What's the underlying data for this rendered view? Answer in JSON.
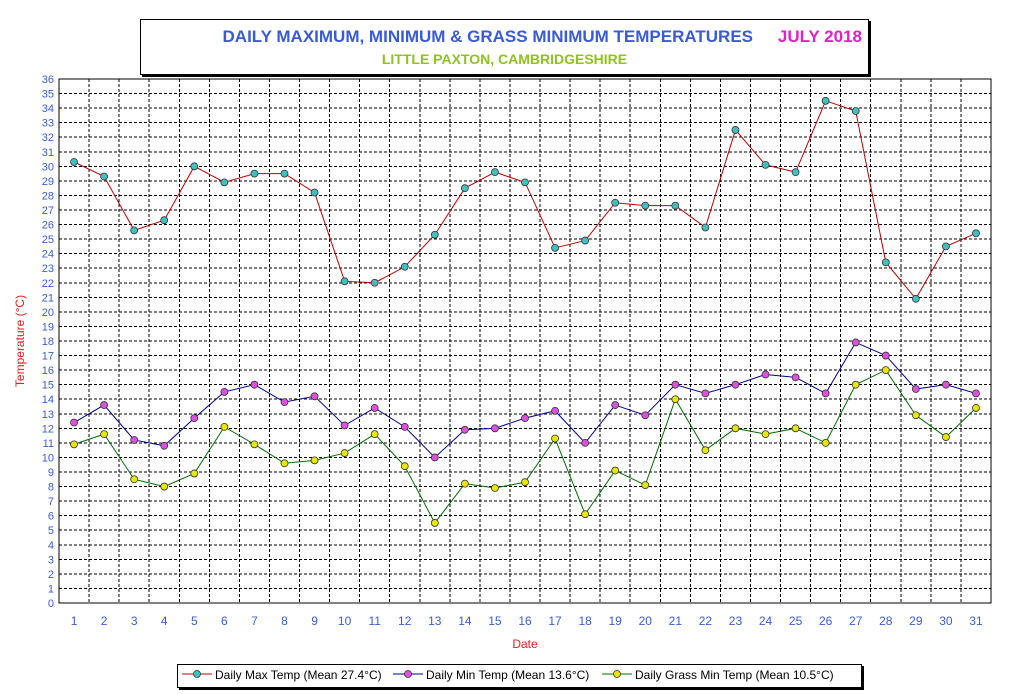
{
  "chart_data": {
    "type": "line",
    "title": "DAILY MAXIMUM, MINIMUM & GRASS MINIMUM TEMPERATURES",
    "title_date": "JULY 2018",
    "subtitle": "LITTLE PAXTON, CAMBRIDGESHIRE",
    "xlabel": "Date",
    "ylabel": "Temperature (°C)",
    "ylim": [
      0,
      36
    ],
    "grid": true,
    "legend_position": "bottom",
    "x": [
      1,
      2,
      3,
      4,
      5,
      6,
      7,
      8,
      9,
      10,
      11,
      12,
      13,
      14,
      15,
      16,
      17,
      18,
      19,
      20,
      21,
      22,
      23,
      24,
      25,
      26,
      27,
      28,
      29,
      30,
      31
    ],
    "series": [
      {
        "name": "Daily Max Temp (Mean 27.4°C)",
        "line_color": "#c00000",
        "marker_color": "#40c0c0",
        "values": [
          30.3,
          29.3,
          25.6,
          26.3,
          30.0,
          28.9,
          29.5,
          29.5,
          28.2,
          22.1,
          22.0,
          23.1,
          25.3,
          28.5,
          29.6,
          28.9,
          24.4,
          24.9,
          27.5,
          27.3,
          27.3,
          25.8,
          32.5,
          30.1,
          29.6,
          34.5,
          33.8,
          23.4,
          20.9,
          24.5,
          25.4
        ]
      },
      {
        "name": "Daily Min Temp (Mean 13.6°C)",
        "line_color": "#000090",
        "marker_color": "#e050e0",
        "values": [
          12.4,
          13.6,
          11.2,
          10.8,
          12.7,
          14.5,
          15.0,
          13.8,
          14.2,
          12.2,
          13.4,
          12.1,
          10.0,
          11.9,
          12.0,
          12.7,
          13.2,
          11.0,
          13.6,
          12.9,
          15.0,
          14.4,
          15.0,
          15.7,
          15.5,
          14.4,
          17.9,
          17.0,
          14.7,
          15.0,
          14.4
        ]
      },
      {
        "name": "Daily Grass Min Temp (Mean 10.5°C)",
        "line_color": "#007000",
        "marker_color": "#e8e800",
        "values": [
          10.9,
          11.6,
          8.5,
          8.0,
          8.9,
          12.1,
          10.9,
          9.6,
          9.8,
          10.3,
          11.6,
          9.4,
          5.5,
          8.2,
          7.9,
          8.3,
          11.3,
          6.1,
          9.1,
          8.1,
          14.0,
          10.5,
          12.0,
          11.6,
          12.0,
          11.0,
          15.0,
          16.0,
          12.9,
          11.4,
          13.4
        ]
      }
    ]
  }
}
